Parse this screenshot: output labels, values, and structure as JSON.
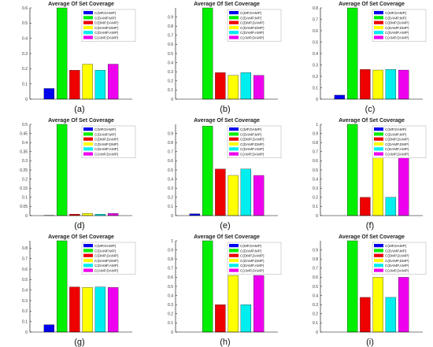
{
  "legend_labels": [
    "C(MP,DAMP)",
    "C(DAMP,MP)",
    "C(DMP,DAMP)",
    "C(DAMP,DMP)",
    "C(DAMP,AMP)",
    "C(AMP,DAMP)"
  ],
  "colors": [
    "#0000ee",
    "#00ee00",
    "#ee0000",
    "#ffff00",
    "#00eeee",
    "#ee00ee"
  ],
  "chart_data": [
    {
      "type": "bar",
      "title": "Average Of Set Coverage",
      "caption": "(a)",
      "categories": [
        "C(MP,DAMP)",
        "C(DAMP,MP)",
        "C(DMP,DAMP)",
        "C(DAMP,DMP)",
        "C(DAMP,AMP)",
        "C(AMP,DAMP)"
      ],
      "values": [
        0.07,
        0.6,
        0.19,
        0.23,
        0.19,
        0.23
      ],
      "ylim": [
        0,
        0.6
      ],
      "yticks": [
        0,
        0.1,
        0.2,
        0.3,
        0.4,
        0.5,
        0.6
      ],
      "ytick_labels": [
        "0",
        "0.1",
        "0.2",
        "0.3",
        "0.4",
        "0.5",
        "0.6"
      ],
      "legend": "top-right",
      "grid": false
    },
    {
      "type": "bar",
      "title": "Average Of Set Coverage",
      "caption": "(b)",
      "categories": [
        "C(MP,DAMP)",
        "C(DAMP,MP)",
        "C(DMP,DAMP)",
        "C(DAMP,DMP)",
        "C(DAMP,AMP)",
        "C(AMP,DAMP)"
      ],
      "values": [
        0,
        1.0,
        0.29,
        0.26,
        0.29,
        0.26
      ],
      "ylim": [
        0,
        1.0
      ],
      "yticks": [
        0,
        0.1,
        0.2,
        0.3,
        0.4,
        0.5,
        0.6,
        0.7,
        0.8,
        0.9
      ],
      "ytick_labels": [
        "0",
        "0.1",
        "0.2",
        "0.3",
        "0.4",
        "0.5",
        "0.6",
        "0.7",
        "0.8",
        "0.9"
      ],
      "legend": "top-right",
      "grid": false
    },
    {
      "type": "bar",
      "title": "Average Of Set Coverage",
      "caption": "(c)",
      "categories": [
        "C(MP,DAMP)",
        "C(DAMP,MP)",
        "C(DMP,DAMP)",
        "C(DAMP,DMP)",
        "C(DAMP,AMP)",
        "C(AMP,DAMP)"
      ],
      "values": [
        0.035,
        0.8,
        0.26,
        0.255,
        0.26,
        0.255
      ],
      "ylim": [
        0,
        0.8
      ],
      "yticks": [
        0,
        0.1,
        0.2,
        0.3,
        0.4,
        0.5,
        0.6,
        0.7,
        0.8
      ],
      "ytick_labels": [
        "0",
        "0.1",
        "0.2",
        "0.3",
        "0.4",
        "0.5",
        "0.6",
        "0.7",
        "0.8"
      ],
      "legend": "top-right",
      "grid": false
    },
    {
      "type": "bar",
      "title": "Average Of Set Coverage",
      "caption": "(d)",
      "categories": [
        "C(MP,DAMP)",
        "C(DAMP,MP)",
        "C(DMP,DAMP)",
        "C(DAMP,DMP)",
        "C(DAMP,AMP)",
        "C(AMP,DAMP)"
      ],
      "values": [
        0.001,
        0.5,
        0.008,
        0.012,
        0.008,
        0.012
      ],
      "ylim": [
        0,
        0.5
      ],
      "yticks": [
        0,
        0.05,
        0.1,
        0.15,
        0.2,
        0.25,
        0.3,
        0.35,
        0.4,
        0.45,
        0.5
      ],
      "ytick_labels": [
        "0",
        "0.05",
        "0.1",
        "0.15",
        "0.2",
        "0.25",
        "0.3",
        "0.35",
        "0.4",
        "0.45",
        "0.5"
      ],
      "legend": "top-right",
      "grid": false
    },
    {
      "type": "bar",
      "title": "Average Of Set Coverage",
      "caption": "(e)",
      "categories": [
        "C(MP,DAMP)",
        "C(DAMP,MP)",
        "C(DMP,DAMP)",
        "C(DAMP,DMP)",
        "C(DAMP,AMP)",
        "C(AMP,DAMP)"
      ],
      "values": [
        0.02,
        0.98,
        0.51,
        0.44,
        0.51,
        0.44
      ],
      "ylim": [
        0,
        1.0
      ],
      "yticks": [
        0,
        0.1,
        0.2,
        0.3,
        0.4,
        0.5,
        0.6,
        0.7,
        0.8,
        0.9
      ],
      "ytick_labels": [
        "0",
        "0.1",
        "0.2",
        "0.3",
        "0.4",
        "0.5",
        "0.6",
        "0.7",
        "0.8",
        "0.9"
      ],
      "legend": "top-right",
      "grid": false
    },
    {
      "type": "bar",
      "title": "Average Of Set Coverage",
      "caption": "(f)",
      "categories": [
        "C(MP,DAMP)",
        "C(DAMP,MP)",
        "C(DMP,DAMP)",
        "C(DAMP,DMP)",
        "C(DAMP,AMP)",
        "C(AMP,DAMP)"
      ],
      "values": [
        0,
        1.0,
        0.2,
        0.8,
        0.2,
        0.8
      ],
      "ylim": [
        0,
        1.0
      ],
      "yticks": [
        0,
        0.1,
        0.2,
        0.3,
        0.4,
        0.5,
        0.6,
        0.7,
        0.8,
        0.9,
        1.0
      ],
      "ytick_labels": [
        "0",
        "0.1",
        "0.2",
        "0.3",
        "0.4",
        "0.5",
        "0.6",
        "0.7",
        "0.8",
        "0.9",
        "1"
      ],
      "legend": "top-right",
      "grid": false
    },
    {
      "type": "bar",
      "title": "Average Of Set Coverage",
      "caption": "(g)",
      "categories": [
        "C(MP,DAMP)",
        "C(DAMP,MP)",
        "C(DMP,DAMP)",
        "C(DAMP,DMP)",
        "C(DAMP,AMP)",
        "C(AMP,DAMP)"
      ],
      "values": [
        0.07,
        0.87,
        0.43,
        0.425,
        0.43,
        0.425
      ],
      "ylim": [
        0,
        0.87
      ],
      "yticks": [
        0,
        0.1,
        0.2,
        0.3,
        0.4,
        0.5,
        0.6,
        0.7,
        0.8
      ],
      "ytick_labels": [
        "0",
        "0.1",
        "0.2",
        "0.3",
        "0.4",
        "0.5",
        "0.6",
        "0.7",
        "0.8"
      ],
      "legend": "top-right",
      "grid": false
    },
    {
      "type": "bar",
      "title": "Average Of Set Coverage",
      "caption": "(h)",
      "categories": [
        "C(MP,DAMP)",
        "C(DAMP,MP)",
        "C(DMP,DAMP)",
        "C(DAMP,DMP)",
        "C(DAMP,AMP)",
        "C(AMP,DAMP)"
      ],
      "values": [
        0,
        1.0,
        0.3,
        0.62,
        0.3,
        0.62
      ],
      "ylim": [
        0,
        1.0
      ],
      "yticks": [
        0,
        0.1,
        0.2,
        0.3,
        0.4,
        0.5,
        0.6,
        0.7,
        0.8,
        0.9,
        1.0
      ],
      "ytick_labels": [
        "0",
        "0.1",
        "0.2",
        "0.3",
        "0.4",
        "0.5",
        "0.6",
        "0.7",
        "0.8",
        "0.9",
        "1"
      ],
      "legend": "top-right",
      "grid": false
    },
    {
      "type": "bar",
      "title": "Average Of Set Coverage",
      "caption": "(i)",
      "categories": [
        "C(MP,DAMP)",
        "C(DAMP,MP)",
        "C(DMP,DAMP)",
        "C(DAMP,DMP)",
        "C(DAMP,AMP)",
        "C(AMP,DAMP)"
      ],
      "values": [
        0,
        1.0,
        0.38,
        0.6,
        0.38,
        0.6
      ],
      "ylim": [
        0,
        1.0
      ],
      "yticks": [
        0,
        0.1,
        0.2,
        0.3,
        0.4,
        0.5,
        0.6,
        0.7,
        0.8,
        0.9
      ],
      "ytick_labels": [
        "0",
        "0.1",
        "0.2",
        "0.3",
        "0.4",
        "0.5",
        "0.6",
        "0.7",
        "0.8",
        "0.9"
      ],
      "legend": "top-right",
      "grid": false
    }
  ]
}
